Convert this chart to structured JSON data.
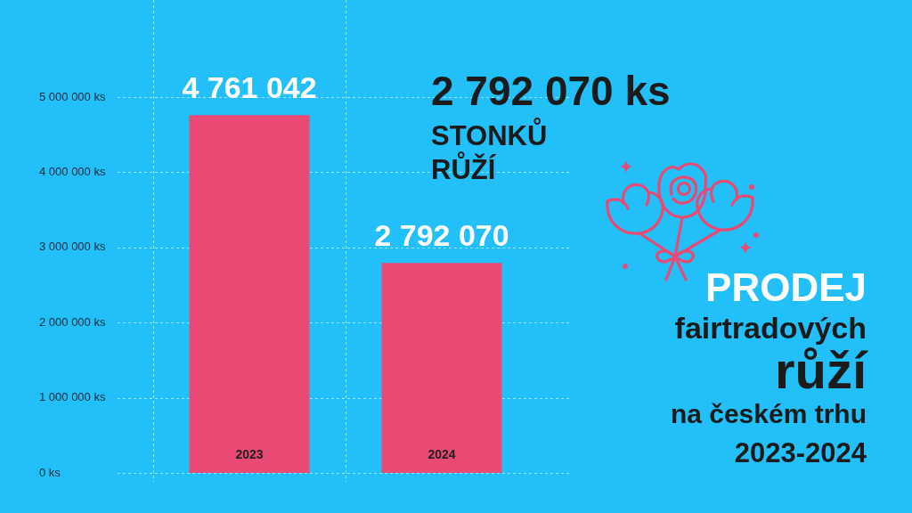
{
  "chart_data": {
    "type": "bar",
    "title": "PRODEJ\nfairtradových\nrůží\nna českém trhu\n2023-2024",
    "annotations": [
      "2 792 070 ks",
      "STONKŮ\nRŮŽÍ"
    ],
    "categories": [
      "2023",
      "2024"
    ],
    "values": [
      4761042,
      2792070
    ],
    "color": "#e84a74",
    "value_labels": [
      "4 761 042",
      "2 792 070"
    ],
    "ylim": [
      0,
      5000000
    ],
    "yticks": [
      {
        "value": 0,
        "label": "0 ks"
      },
      {
        "value": 1000000,
        "label": "1 000 000 ks"
      },
      {
        "value": 2000000,
        "label": "2 000 000 ks"
      },
      {
        "value": 3000000,
        "label": "3 000 000 ks"
      },
      {
        "value": 4000000,
        "label": "4 000 000 ks"
      },
      {
        "value": 5000000,
        "label": "5 000 000 ks"
      }
    ],
    "grid": true
  }
}
